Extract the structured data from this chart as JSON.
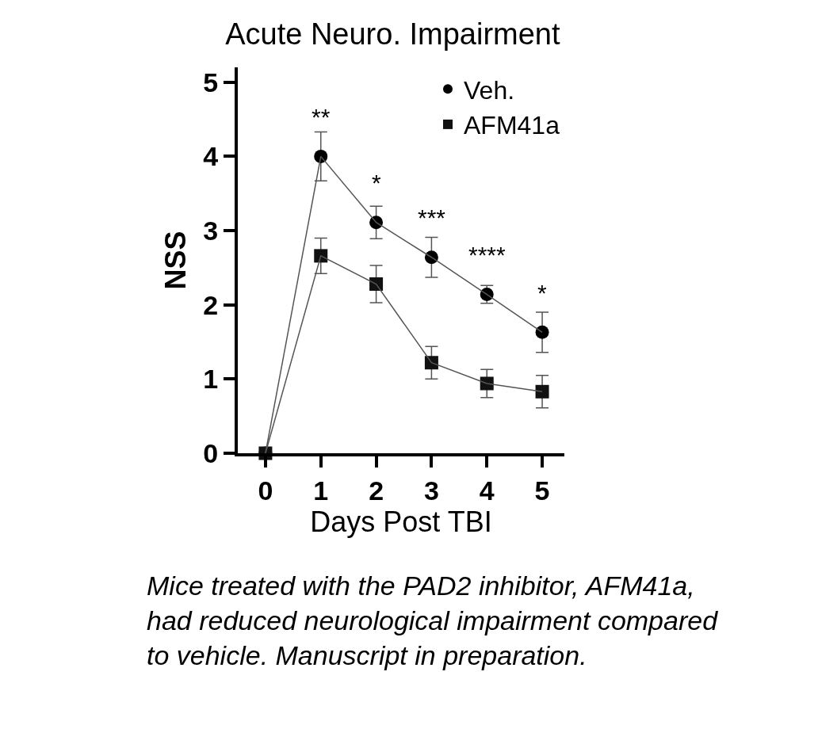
{
  "chart_data": {
    "type": "line",
    "title": "Acute Neuro. Impairment",
    "xlabel": "Days Post TBI",
    "ylabel": "NSS",
    "x": [
      0,
      1,
      2,
      3,
      4,
      5
    ],
    "series": [
      {
        "name": "Veh.",
        "color": "#000000",
        "marker": "circle",
        "values": [
          0,
          4.0,
          3.11,
          2.64,
          2.14,
          1.63
        ],
        "errors": [
          null,
          0.33,
          0.22,
          0.27,
          0.12,
          0.27
        ]
      },
      {
        "name": "AFM41a",
        "color": "#111111",
        "marker": "square",
        "values": [
          0,
          2.66,
          2.28,
          1.22,
          0.94,
          0.83
        ],
        "errors": [
          null,
          0.24,
          0.25,
          0.22,
          0.19,
          0.22
        ]
      }
    ],
    "xlim": [
      -0.5,
      5.4
    ],
    "xticks": [
      0,
      1,
      2,
      3,
      4,
      5
    ],
    "ylim": [
      0,
      5.2
    ],
    "yticks": [
      0,
      1,
      2,
      3,
      4,
      5
    ],
    "legend": "top right",
    "annotations": [
      {
        "text": "**",
        "x": 1,
        "y": 4.0
      },
      {
        "text": "*",
        "x": 2,
        "y": 3.11
      },
      {
        "text": "***",
        "x": 3,
        "y": 2.64
      },
      {
        "text": "****",
        "x": 4,
        "y": 2.14
      },
      {
        "text": "*",
        "x": 5,
        "y": 1.63
      },
      "Mice treated with the PAD2 inhibitor, AFM41a, had reduced neurological impairment compared to vehicle. Manuscript in preparation."
    ]
  }
}
